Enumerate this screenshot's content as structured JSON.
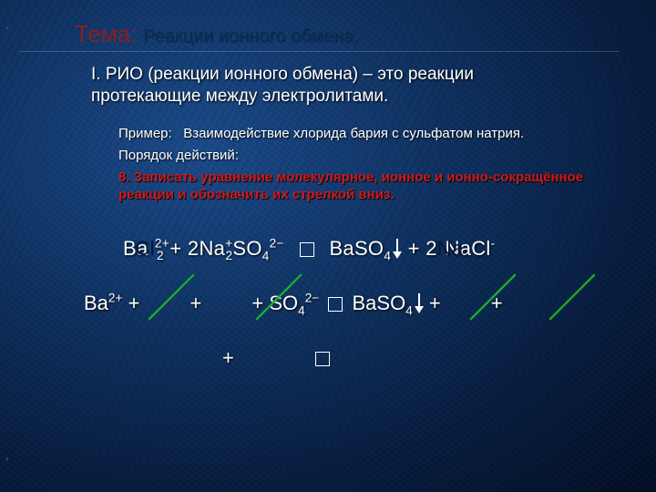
{
  "colors": {
    "title_red": "#8a1f1f",
    "title_dark": "#0c2e55",
    "body_text": "#ffffff",
    "step_text": "#cc1b1b",
    "strike_green": "#1fae3b",
    "bg_gradient_inner": "#1a4a8a",
    "bg_gradient_outer": "#020d24"
  },
  "fonts": {
    "family": "Arial, sans-serif",
    "title_size_pt": 20,
    "body_size_pt": 14,
    "equation_size_pt": 16
  },
  "decor": {
    "star_glyph": "*"
  },
  "title": {
    "prefix": "Тема:",
    "subject": "Реакции ионного обмена."
  },
  "definition": {
    "line1": "I.  РИО (реакции ионного обмена) – это реакции",
    "line2": "протекающие между электролитами."
  },
  "example_label": "Пример:",
  "example_text": "Взаимодействие хлорида бария с сульфатом натрия.",
  "order_label": "Порядок действий:",
  "step_red_line1": "8. Записать уравнение молекулярное, ионное и ионно-сокращённое",
  "step_red_line2": "реакции и обозначить их стрелкой вниз.",
  "eq1": {
    "part_a": "Ba",
    "part_a_sup": "2+",
    "part_a_overlay": "Cl",
    "part_a_overlay_sub": "2",
    "plus1": " + 2",
    "part_b": "Na",
    "part_b_sup": "+",
    "part_b_sub": "2",
    "part_c": "SO",
    "part_c_sub": "4",
    "part_c_sup": "2−",
    "part_d": "BaSO",
    "part_d_sub": "4",
    "plus2": " + 2",
    "part_e_overlay": "Na",
    "part_e": "NaCl",
    "part_e_sup": "-"
  },
  "eq2": {
    "lhs_a": "Ba",
    "lhs_a_sup": "2+",
    "plus1": " + ",
    "plus2": " + ",
    "plus3": " + ",
    "lhs_b": "SO",
    "lhs_b_sub": "4",
    "lhs_b_sup": "2−",
    "rhs": "BaSO",
    "rhs_sub": "4",
    "plus4": " + ",
    "plus5": " + "
  },
  "eq3": {
    "plus": "+"
  }
}
